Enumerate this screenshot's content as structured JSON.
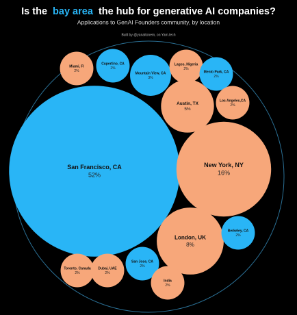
{
  "chart_data": {
    "type": "packed-bubble",
    "title_parts": [
      "Is the",
      "bay area",
      "the hub for generative AI companies?"
    ],
    "subtitle": "Applications to GenAI Founders community, by location",
    "credit": "Built by @yanaitonem, on Yam.tech",
    "categories": [
      "San Francisco, CA",
      "New York, NY",
      "London, UK",
      "Austin, TX",
      "Mountain View, CA",
      "Cupertino, CA",
      "Miami, Fl",
      "Lagos, Nigeria",
      "Menlo Park, CA",
      "Los Angeles,CA",
      "Berkeley, CA",
      "San Jose, CA",
      "Toronto, Canada",
      "Dubai, UAE",
      "India"
    ],
    "values": [
      52,
      16,
      8,
      5,
      3,
      2,
      2,
      2,
      2,
      2,
      2,
      2,
      2,
      2,
      2
    ],
    "value_labels": [
      "52%",
      "16%",
      "8%",
      "5%",
      "3%",
      "2%",
      "2%",
      "2%",
      "2%",
      "2%",
      "2%",
      "2%",
      "2%",
      "2%",
      "2%"
    ],
    "colors": [
      "#29b5f6",
      "#f7a77a",
      "#f7a77a",
      "#f7a77a",
      "#29b5f6",
      "#29b5f6",
      "#f7a77a",
      "#f7a77a",
      "#29b5f6",
      "#f7a77a",
      "#29b5f6",
      "#29b5f6",
      "#f7a77a",
      "#f7a77a",
      "#f7a77a"
    ],
    "highlight_color": "#29b5f6"
  }
}
